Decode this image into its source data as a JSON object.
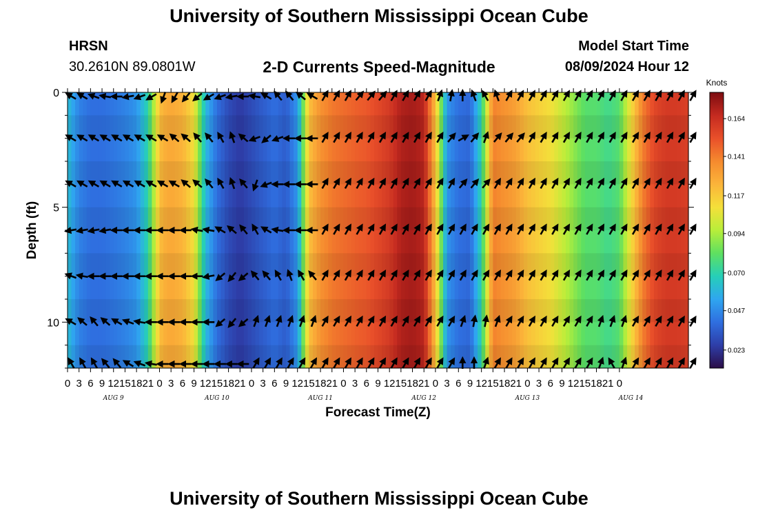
{
  "header": {
    "title": "University of Southern Mississippi Ocean Cube",
    "station": "HRSN",
    "coordinates": "30.2610N  89.0801W",
    "subtitle": "2-D Currents Speed-Magnitude",
    "model_start_label": "Model Start Time",
    "model_start_value": "08/09/2024 Hour 12"
  },
  "footer": {
    "title": "University of Southern Mississippi Ocean Cube"
  },
  "colors": {
    "scale": [
      "#2b0d47",
      "#2e3ea8",
      "#2f6fe0",
      "#2fa6f0",
      "#26cfb8",
      "#5fe060",
      "#b8ee3a",
      "#f4e03a",
      "#fbb43a",
      "#f58a2e",
      "#e9502a",
      "#c42a20",
      "#7d0c10"
    ],
    "arrow": "#000000"
  },
  "chart_data": {
    "type": "heatmap",
    "xlabel": "Forecast Time(Z)",
    "ylabel": "Depth (ft)",
    "x_range_hours": [
      0,
      162
    ],
    "y_range_ft": [
      0,
      12
    ],
    "y_ticks": [
      {
        "value": 0,
        "label": "0"
      },
      {
        "value": 5,
        "label": "5"
      },
      {
        "value": 10,
        "label": "10"
      }
    ],
    "x_tick_labels": [
      "0",
      "3",
      "6",
      "9",
      "12",
      "15",
      "18",
      "21",
      "0",
      "3",
      "6",
      "9",
      "12",
      "15",
      "18",
      "21",
      "0",
      "3",
      "6",
      "9",
      "12",
      "15",
      "18",
      "21",
      "0",
      "3",
      "6",
      "9",
      "12",
      "15",
      "18",
      "21",
      "0",
      "3",
      "6",
      "9",
      "12",
      "15",
      "18",
      "21",
      "0",
      "3",
      "6",
      "9",
      "12",
      "15",
      "18",
      "21",
      "0"
    ],
    "date_labels": [
      {
        "hour": 12,
        "label": "AUG 9"
      },
      {
        "hour": 39,
        "label": "AUG 10"
      },
      {
        "hour": 66,
        "label": "AUG 11"
      },
      {
        "hour": 93,
        "label": "AUG 12"
      },
      {
        "hour": 120,
        "label": "AUG 13"
      },
      {
        "hour": 147,
        "label": "AUG 14"
      }
    ],
    "colorbar": {
      "title": "Knots",
      "ticks": [
        "0.023",
        "0.047",
        "0.070",
        "0.094",
        "0.117",
        "0.141",
        "0.164"
      ],
      "range": [
        0.012,
        0.18
      ]
    },
    "speed_profile_hours": [
      0,
      3,
      6,
      9,
      12,
      15,
      18,
      21,
      24,
      25,
      27,
      30,
      33,
      36,
      39,
      42,
      45,
      48,
      51,
      54,
      57,
      60,
      63,
      66,
      69,
      72,
      75,
      78,
      81,
      84,
      87,
      90,
      93,
      96,
      99,
      102,
      105,
      108,
      111,
      114,
      117,
      120,
      123,
      126,
      129,
      132,
      135,
      138,
      141,
      144,
      147,
      150,
      153,
      156,
      159,
      162
    ],
    "speed_profile_knots": [
      0.062,
      0.045,
      0.04,
      0.04,
      0.042,
      0.045,
      0.05,
      0.07,
      0.12,
      0.125,
      0.128,
      0.124,
      0.11,
      0.06,
      0.04,
      0.03,
      0.025,
      0.03,
      0.035,
      0.04,
      0.035,
      0.05,
      0.12,
      0.135,
      0.142,
      0.145,
      0.148,
      0.15,
      0.155,
      0.16,
      0.17,
      0.172,
      0.168,
      0.12,
      0.05,
      0.04,
      0.038,
      0.07,
      0.14,
      0.135,
      0.13,
      0.12,
      0.115,
      0.11,
      0.1,
      0.09,
      0.08,
      0.08,
      0.075,
      0.08,
      0.11,
      0.14,
      0.155,
      0.16,
      0.16,
      0.158
    ],
    "arrow_depths_ft": [
      0,
      2,
      4,
      6,
      8,
      10,
      12
    ],
    "arrow_step_hours": 3,
    "arrow_dirs_deg": [
      [
        300,
        300,
        290,
        280,
        270,
        260,
        250,
        240,
        200,
        210,
        220,
        230,
        240,
        250,
        260,
        270,
        280,
        300,
        320,
        320,
        310,
        300,
        30,
        30,
        30,
        40,
        40,
        40,
        30,
        30,
        30,
        30,
        20,
        10,
        0,
        340,
        330,
        340,
        30,
        30,
        30,
        30,
        30,
        30,
        30,
        30,
        30,
        30,
        30,
        30,
        30,
        30,
        30,
        30,
        30
      ],
      [
        300,
        300,
        300,
        300,
        300,
        300,
        300,
        300,
        300,
        310,
        310,
        320,
        320,
        330,
        340,
        310,
        250,
        230,
        250,
        270,
        270,
        270,
        30,
        30,
        30,
        30,
        30,
        30,
        30,
        30,
        30,
        30,
        30,
        40,
        60,
        40,
        20,
        40,
        40,
        40,
        30,
        30,
        30,
        30,
        30,
        30,
        30,
        30,
        30,
        30,
        30,
        30,
        30,
        30,
        30
      ],
      [
        300,
        300,
        300,
        300,
        300,
        300,
        300,
        300,
        300,
        300,
        310,
        310,
        320,
        330,
        340,
        320,
        200,
        250,
        270,
        270,
        270,
        270,
        30,
        30,
        30,
        30,
        30,
        30,
        30,
        30,
        30,
        30,
        30,
        30,
        40,
        40,
        40,
        30,
        30,
        30,
        30,
        30,
        30,
        30,
        30,
        30,
        30,
        30,
        30,
        30,
        30,
        30,
        30,
        30,
        30
      ],
      [
        260,
        260,
        260,
        260,
        270,
        270,
        270,
        270,
        270,
        270,
        270,
        280,
        280,
        300,
        310,
        320,
        330,
        300,
        280,
        270,
        270,
        270,
        30,
        30,
        30,
        30,
        30,
        30,
        30,
        30,
        30,
        30,
        30,
        30,
        30,
        30,
        30,
        30,
        30,
        30,
        30,
        30,
        30,
        30,
        30,
        30,
        30,
        30,
        30,
        30,
        30,
        30,
        30,
        30,
        30
      ],
      [
        290,
        280,
        270,
        270,
        270,
        270,
        270,
        270,
        270,
        270,
        270,
        270,
        260,
        230,
        220,
        230,
        320,
        320,
        330,
        340,
        330,
        320,
        30,
        30,
        30,
        30,
        30,
        30,
        30,
        30,
        30,
        30,
        30,
        30,
        30,
        30,
        30,
        30,
        30,
        30,
        30,
        30,
        30,
        30,
        30,
        30,
        30,
        30,
        30,
        30,
        30,
        30,
        30,
        30,
        30
      ],
      [
        300,
        310,
        320,
        310,
        300,
        290,
        280,
        270,
        270,
        270,
        270,
        270,
        270,
        230,
        220,
        230,
        20,
        20,
        20,
        20,
        20,
        20,
        30,
        30,
        30,
        30,
        30,
        30,
        30,
        30,
        30,
        30,
        30,
        30,
        20,
        10,
        10,
        20,
        30,
        30,
        30,
        30,
        30,
        30,
        30,
        30,
        20,
        20,
        20,
        30,
        30,
        30,
        30,
        30,
        30
      ],
      [
        330,
        330,
        330,
        320,
        320,
        300,
        290,
        280,
        270,
        270,
        270,
        270,
        270,
        270,
        270,
        270,
        30,
        30,
        30,
        30,
        30,
        30,
        30,
        30,
        30,
        30,
        30,
        30,
        30,
        30,
        30,
        30,
        30,
        30,
        0,
        0,
        20,
        30,
        30,
        30,
        30,
        30,
        30,
        30,
        30,
        30,
        20,
        330,
        20,
        30,
        30,
        30,
        30,
        30,
        30
      ]
    ]
  }
}
